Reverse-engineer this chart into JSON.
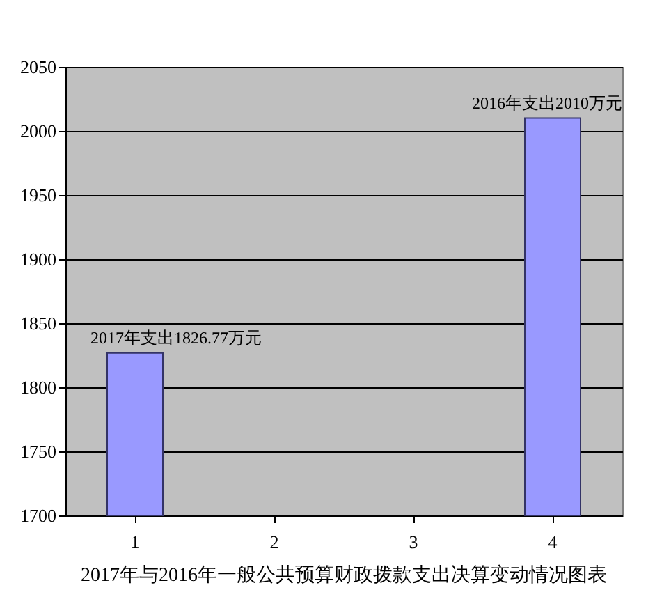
{
  "chart_data": {
    "type": "bar",
    "title": "2017年与2016年一般公共预算财政拨款支出决算变动情况图表",
    "categories": [
      "1",
      "2",
      "3",
      "4"
    ],
    "values": [
      1826.77,
      null,
      null,
      2010
    ],
    "color": "#9999ff",
    "ylim": [
      1700,
      2050
    ],
    "yticks": [
      1700,
      1750,
      1800,
      1850,
      1900,
      1950,
      2000,
      2050
    ],
    "grid": "y",
    "annotations": [
      {
        "text": "2017年支出1826.77万元",
        "x": "1",
        "y": 1826.77
      },
      {
        "text": "2016年支出2010万元",
        "x": "4",
        "y": 2010
      }
    ]
  }
}
